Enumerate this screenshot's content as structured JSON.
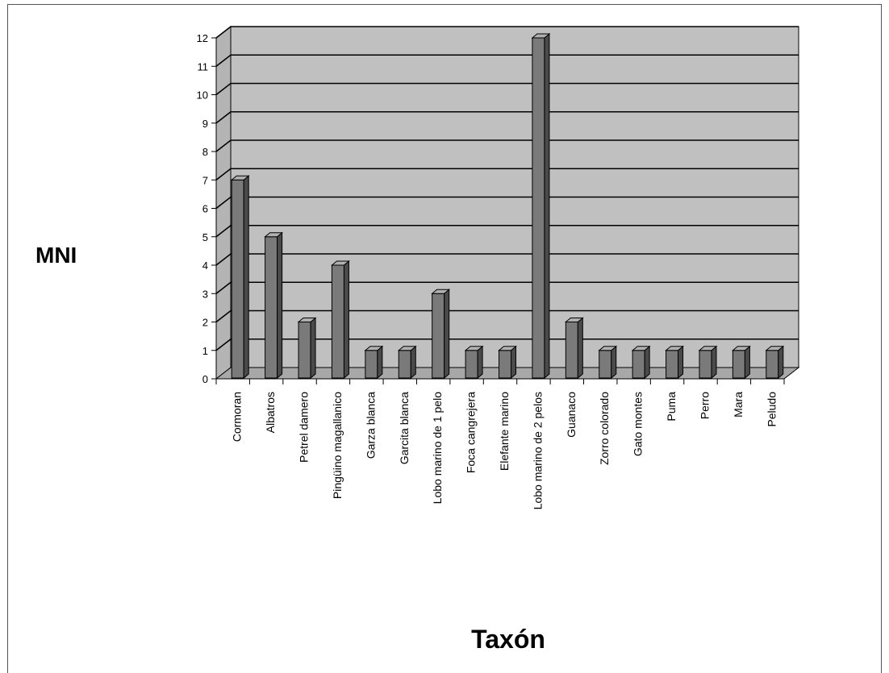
{
  "chart_data": {
    "type": "bar",
    "title": "",
    "xlabel": "Taxón",
    "ylabel": "MNI",
    "ylim": [
      0,
      12
    ],
    "yticks": [
      0,
      1,
      2,
      3,
      4,
      5,
      6,
      7,
      8,
      9,
      10,
      11,
      12
    ],
    "grid": true,
    "legend": "none",
    "categories": [
      "Cormoran",
      "Albatros",
      "Petrel damero",
      "Pingüino magallanico",
      "Garza blanca",
      "Garcita blanca",
      "Lobo marino de 1 pelo",
      "Foca cangrejera",
      "Elefante marino",
      "Lobo marino de 2 pelos",
      "Guanaco",
      "Zorro colorado",
      "Gato montes",
      "Puma",
      "Perro",
      "Mara",
      "Peludo"
    ],
    "values": [
      7,
      5,
      2,
      4,
      1,
      1,
      3,
      1,
      1,
      12,
      2,
      1,
      1,
      1,
      1,
      1,
      1
    ],
    "colors": {
      "wall": "#c0c0c0",
      "floor": "#a8a8a8",
      "bar_front": "#7a7a7a",
      "bar_side": "#4a4a4a",
      "bar_top": "#b0b0b0"
    }
  }
}
